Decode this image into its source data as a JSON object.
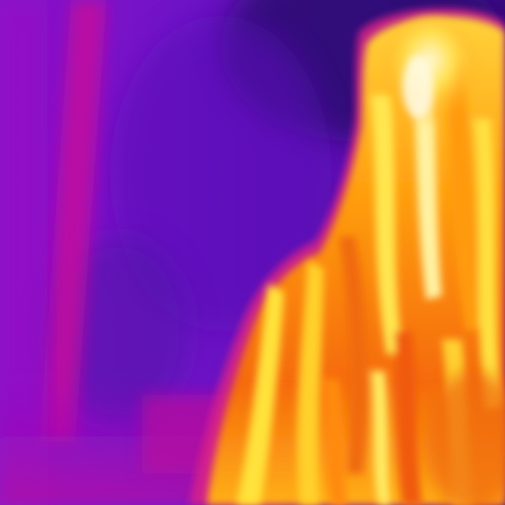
{
  "image": {
    "kind": "thermal-camera-frame",
    "palette": "ironbow",
    "colors": {
      "cold_deep": "#3a0a8a",
      "cold": "#6a12c4",
      "cool": "#9a10c0",
      "warm_magenta": "#c0109a",
      "hot_orange": "#f05a10",
      "hotter": "#ff9a08",
      "hottest": "#ffe64a",
      "white_hot": "#fff6c8"
    }
  }
}
